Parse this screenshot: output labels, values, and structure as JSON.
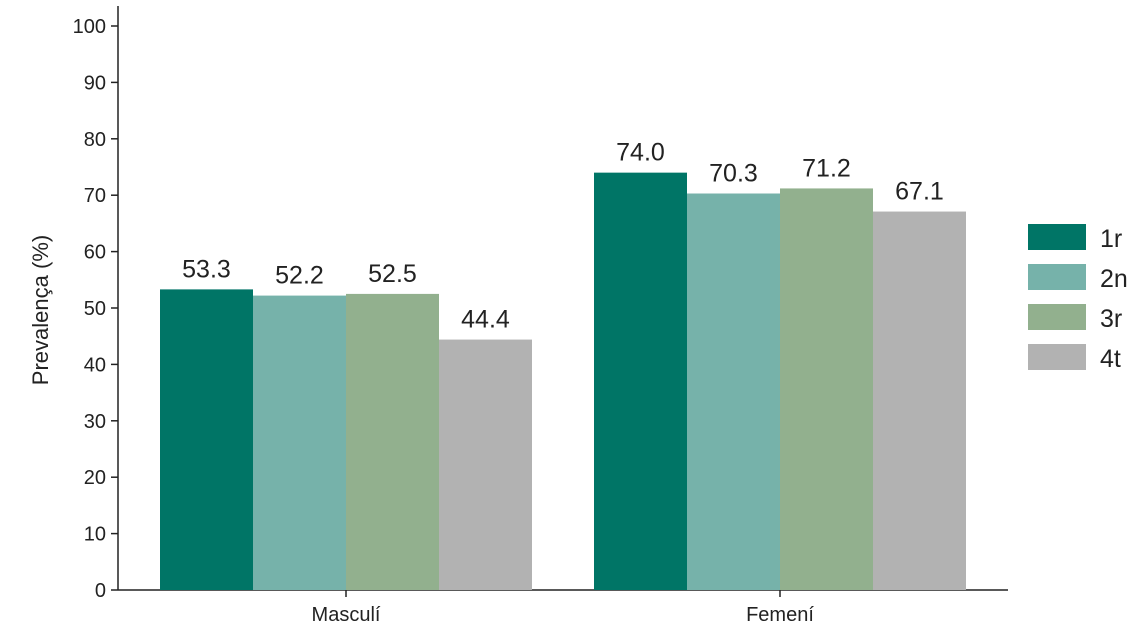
{
  "chart_data": {
    "type": "bar",
    "categories": [
      "Masculí",
      "Femení"
    ],
    "series": [
      {
        "name": "1r",
        "color": "#007566",
        "values": [
          53.3,
          74.0
        ]
      },
      {
        "name": "2n",
        "color": "#76b2aa",
        "values": [
          52.2,
          70.3
        ]
      },
      {
        "name": "3r",
        "color": "#92b08e",
        "values": [
          52.5,
          71.2
        ]
      },
      {
        "name": "4t",
        "color": "#b2b2b2",
        "values": [
          44.4,
          67.1
        ]
      }
    ],
    "value_labels": [
      [
        "53.3",
        "74.0"
      ],
      [
        "52.2",
        "70.3"
      ],
      [
        "52.5",
        "71.2"
      ],
      [
        "44.4",
        "67.1"
      ]
    ],
    "ylabel": "Prevalença (%)",
    "ylim": [
      0,
      100
    ],
    "yticks": [
      "0",
      "10",
      "20",
      "30",
      "40",
      "50",
      "60",
      "70",
      "80",
      "90",
      "100"
    ],
    "grid": false,
    "legend_position": "right"
  }
}
